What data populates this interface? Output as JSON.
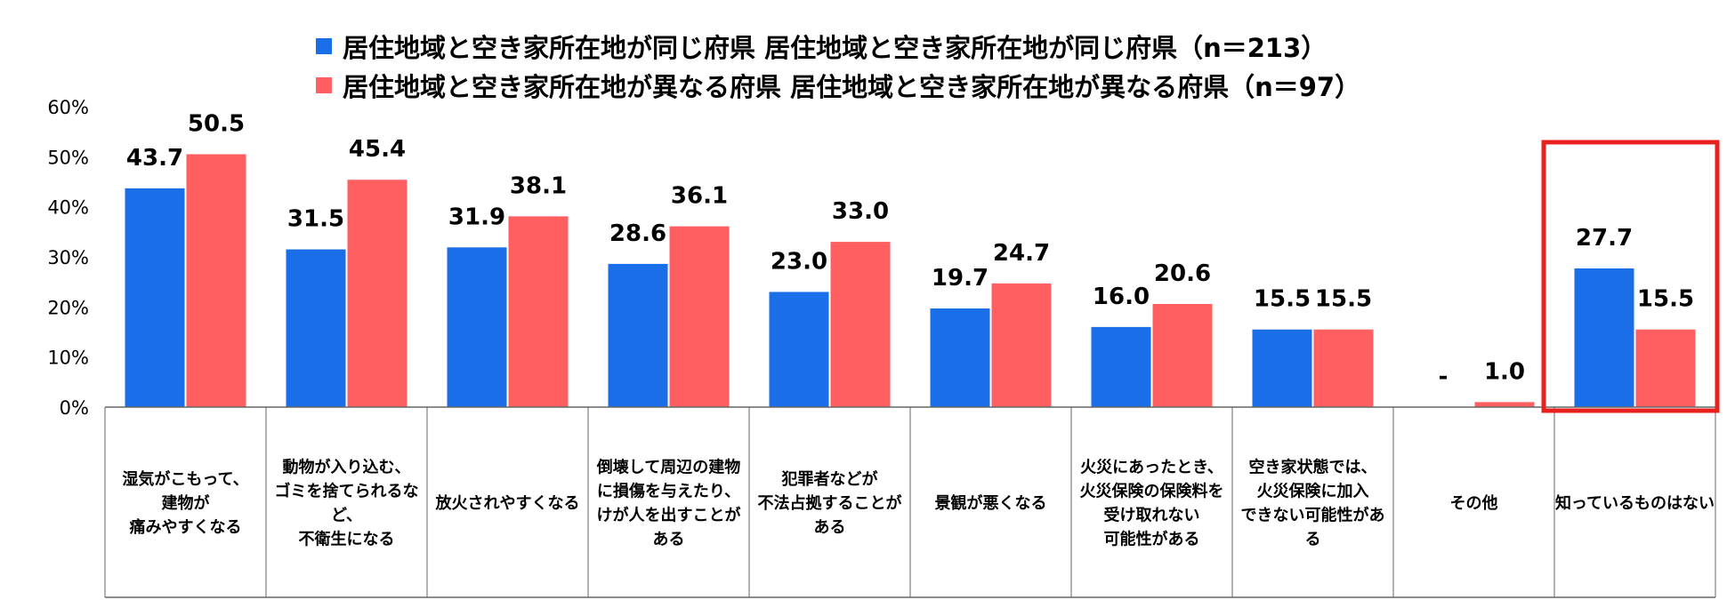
{
  "legend": [
    {
      "label": "居住地域と空き家所在地が同じ府県 居住地域と空き家所在地が同じ府県（n＝213）",
      "color": "#1A6EE8"
    },
    {
      "label": "居住地域と空き家所在地が異なる府県 居住地域と空き家所在地が異なる府県（n＝97）",
      "color": "#FF5F61"
    }
  ],
  "chart_data": {
    "type": "bar",
    "ylim": [
      0,
      60
    ],
    "yticks": [
      "0%",
      "10%",
      "20%",
      "30%",
      "40%",
      "50%",
      "60%"
    ],
    "categories": [
      [
        "湿気がこもって、",
        "建物が",
        "痛みやすくなる"
      ],
      [
        "動物が入り込む、",
        "ゴミを捨てられるな",
        "ど、",
        "不衛生になる"
      ],
      [
        "放火されやすくなる"
      ],
      [
        "倒壊して周辺の建物",
        "に損傷を与えたり、",
        "けが人を出すことが",
        "ある"
      ],
      [
        "犯罪者などが",
        "不法占拠することが",
        "ある"
      ],
      [
        "景観が悪くなる"
      ],
      [
        "火災にあったとき、",
        "火災保険の保険料を",
        "受け取れない",
        "可能性がある"
      ],
      [
        "空き家状態では、",
        "火災保険に加入",
        "できない可能性があ",
        "る"
      ],
      [
        "その他"
      ],
      [
        "知っているものはない"
      ]
    ],
    "series": [
      {
        "name": "居住地域と空き家所在地が同じ府県 居住地域と空き家所在地が同じ府県（n＝213）",
        "color": "#1A6EE8",
        "values": [
          43.7,
          31.5,
          31.9,
          28.6,
          23.0,
          19.7,
          16.0,
          15.5,
          null,
          27.7
        ],
        "labels": [
          "43.7",
          "31.5",
          "31.9",
          "28.6",
          "23.0",
          "19.7",
          "16.0",
          "15.5",
          "-",
          "27.7"
        ]
      },
      {
        "name": "居住地域と空き家所在地が異なる府県 居住地域と空き家所在地が異なる府県（n＝97）",
        "color": "#FF5F61",
        "values": [
          50.5,
          45.4,
          38.1,
          36.1,
          33.0,
          24.7,
          20.6,
          15.5,
          1.0,
          15.5
        ],
        "labels": [
          "50.5",
          "45.4",
          "38.1",
          "36.1",
          "33.0",
          "24.7",
          "20.6",
          "15.5",
          "1.0",
          "15.5"
        ]
      }
    ],
    "highlight": {
      "category_index": 9,
      "color": "#E8201E"
    }
  }
}
